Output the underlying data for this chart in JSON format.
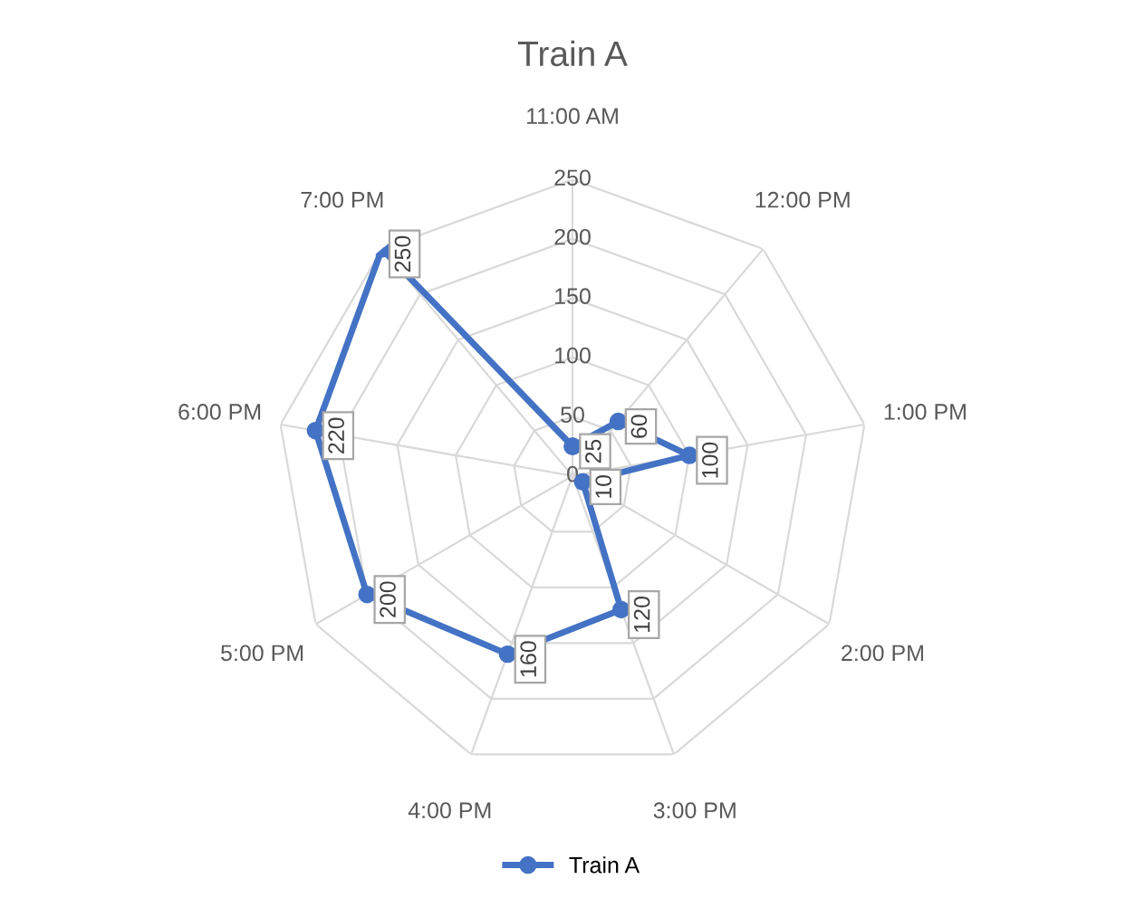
{
  "chart_data": {
    "type": "radar",
    "title": "Train A",
    "categories": [
      "11:00 AM",
      "12:00 PM",
      "1:00 PM",
      "2:00 PM",
      "3:00 PM",
      "4:00 PM",
      "5:00 PM",
      "6:00 PM",
      "7:00 PM"
    ],
    "series": [
      {
        "name": "Train A",
        "color": "#4472c4",
        "values": [
          25,
          60,
          100,
          10,
          120,
          160,
          200,
          220,
          250
        ]
      }
    ],
    "ylim": [
      0,
      250
    ],
    "yticks": [
      0,
      50,
      100,
      150,
      200,
      250
    ],
    "grid": true,
    "legend": "bottom",
    "marker": "circle",
    "line_style": "solid",
    "data_labels": true
  }
}
